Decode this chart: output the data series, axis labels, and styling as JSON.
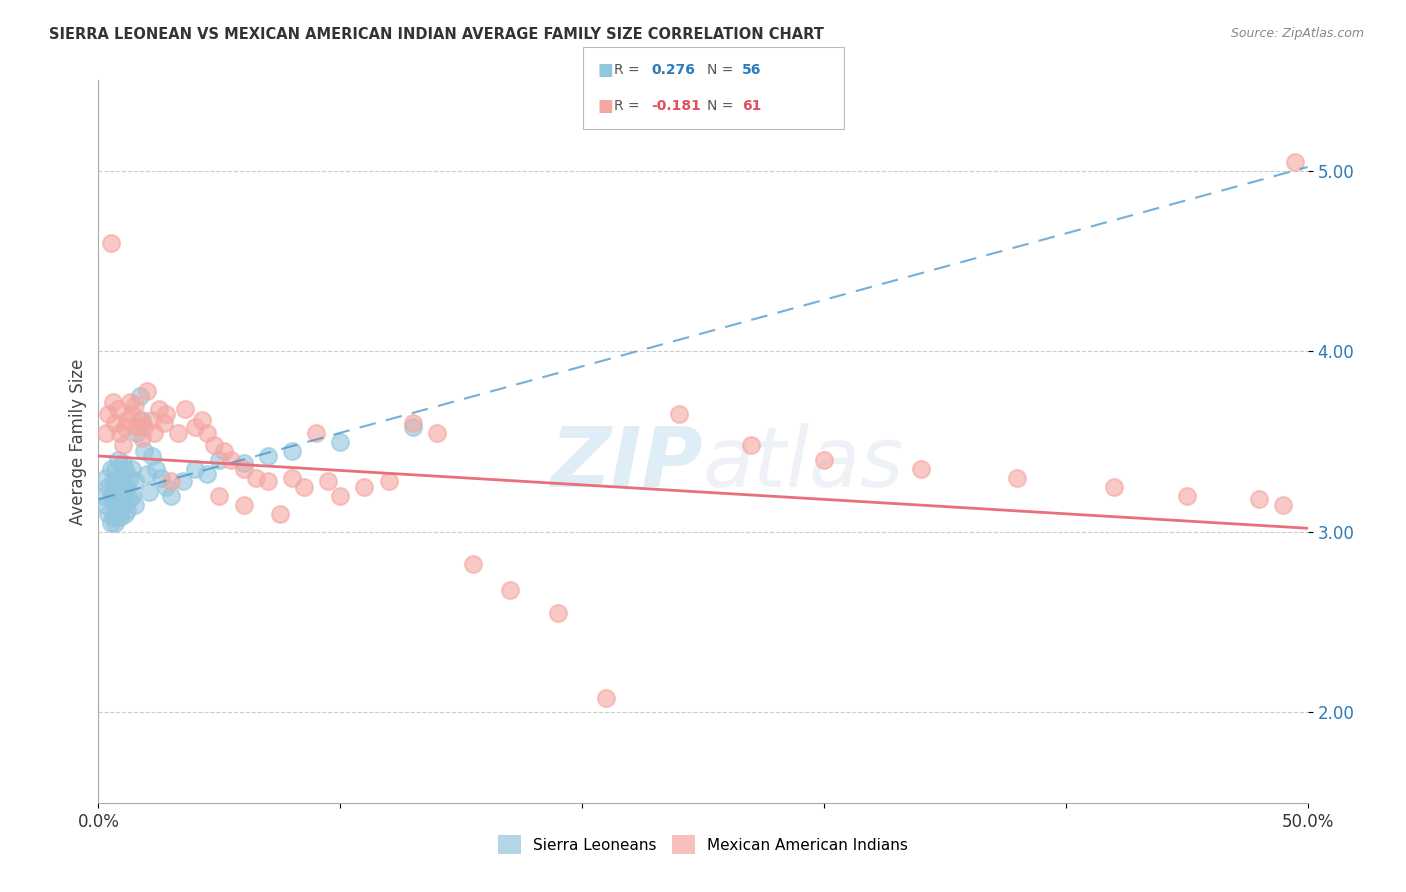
{
  "title": "SIERRA LEONEAN VS MEXICAN AMERICAN INDIAN AVERAGE FAMILY SIZE CORRELATION CHART",
  "source": "Source: ZipAtlas.com",
  "ylabel": "Average Family Size",
  "xlim": [
    0.0,
    0.5
  ],
  "ylim": [
    1.5,
    5.5
  ],
  "yticks": [
    2.0,
    3.0,
    4.0,
    5.0
  ],
  "xticks": [
    0.0,
    0.1,
    0.2,
    0.3,
    0.4,
    0.5
  ],
  "legend_label_blue": "Sierra Leoneans",
  "legend_label_pink": "Mexican American Indians",
  "blue_color": "#92c5de",
  "pink_color": "#f4a6a0",
  "blue_line_color": "#3b8ec8",
  "pink_line_color": "#e8707a",
  "watermark_zip": "ZIP",
  "watermark_atlas": "atlas",
  "blue_scatter_x": [
    0.002,
    0.003,
    0.003,
    0.004,
    0.004,
    0.005,
    0.005,
    0.005,
    0.006,
    0.006,
    0.006,
    0.007,
    0.007,
    0.007,
    0.007,
    0.008,
    0.008,
    0.008,
    0.008,
    0.009,
    0.009,
    0.009,
    0.01,
    0.01,
    0.01,
    0.011,
    0.011,
    0.011,
    0.012,
    0.012,
    0.013,
    0.013,
    0.014,
    0.014,
    0.015,
    0.015,
    0.016,
    0.017,
    0.018,
    0.019,
    0.02,
    0.021,
    0.022,
    0.024,
    0.026,
    0.028,
    0.03,
    0.035,
    0.04,
    0.045,
    0.05,
    0.06,
    0.07,
    0.08,
    0.1,
    0.13
  ],
  "blue_scatter_y": [
    3.2,
    3.15,
    3.3,
    3.1,
    3.25,
    3.05,
    3.2,
    3.35,
    3.08,
    3.18,
    3.28,
    3.05,
    3.15,
    3.25,
    3.35,
    3.1,
    3.2,
    3.3,
    3.4,
    3.08,
    3.18,
    3.28,
    3.15,
    3.25,
    3.38,
    3.1,
    3.22,
    3.35,
    3.12,
    3.25,
    3.18,
    3.3,
    3.2,
    3.35,
    3.15,
    3.28,
    3.55,
    3.75,
    3.62,
    3.45,
    3.32,
    3.22,
    3.42,
    3.35,
    3.3,
    3.25,
    3.2,
    3.28,
    3.35,
    3.32,
    3.4,
    3.38,
    3.42,
    3.45,
    3.5,
    3.58
  ],
  "pink_scatter_x": [
    0.003,
    0.004,
    0.005,
    0.006,
    0.007,
    0.008,
    0.009,
    0.01,
    0.011,
    0.012,
    0.013,
    0.014,
    0.015,
    0.016,
    0.017,
    0.018,
    0.019,
    0.02,
    0.022,
    0.023,
    0.025,
    0.027,
    0.028,
    0.03,
    0.033,
    0.036,
    0.04,
    0.043,
    0.045,
    0.048,
    0.052,
    0.055,
    0.06,
    0.065,
    0.07,
    0.08,
    0.085,
    0.09,
    0.095,
    0.1,
    0.11,
    0.12,
    0.13,
    0.14,
    0.155,
    0.17,
    0.19,
    0.21,
    0.24,
    0.27,
    0.3,
    0.34,
    0.38,
    0.42,
    0.45,
    0.48,
    0.49,
    0.495,
    0.05,
    0.06,
    0.075
  ],
  "pink_scatter_y": [
    3.55,
    3.65,
    4.6,
    3.72,
    3.6,
    3.68,
    3.55,
    3.48,
    3.58,
    3.62,
    3.72,
    3.65,
    3.7,
    3.58,
    3.62,
    3.52,
    3.58,
    3.78,
    3.62,
    3.55,
    3.68,
    3.6,
    3.65,
    3.28,
    3.55,
    3.68,
    3.58,
    3.62,
    3.55,
    3.48,
    3.45,
    3.4,
    3.35,
    3.3,
    3.28,
    3.3,
    3.25,
    3.55,
    3.28,
    3.2,
    3.25,
    3.28,
    3.6,
    3.55,
    2.82,
    2.68,
    2.55,
    2.08,
    3.65,
    3.48,
    3.4,
    3.35,
    3.3,
    3.25,
    3.2,
    3.18,
    3.15,
    5.05,
    3.2,
    3.15,
    3.1
  ]
}
